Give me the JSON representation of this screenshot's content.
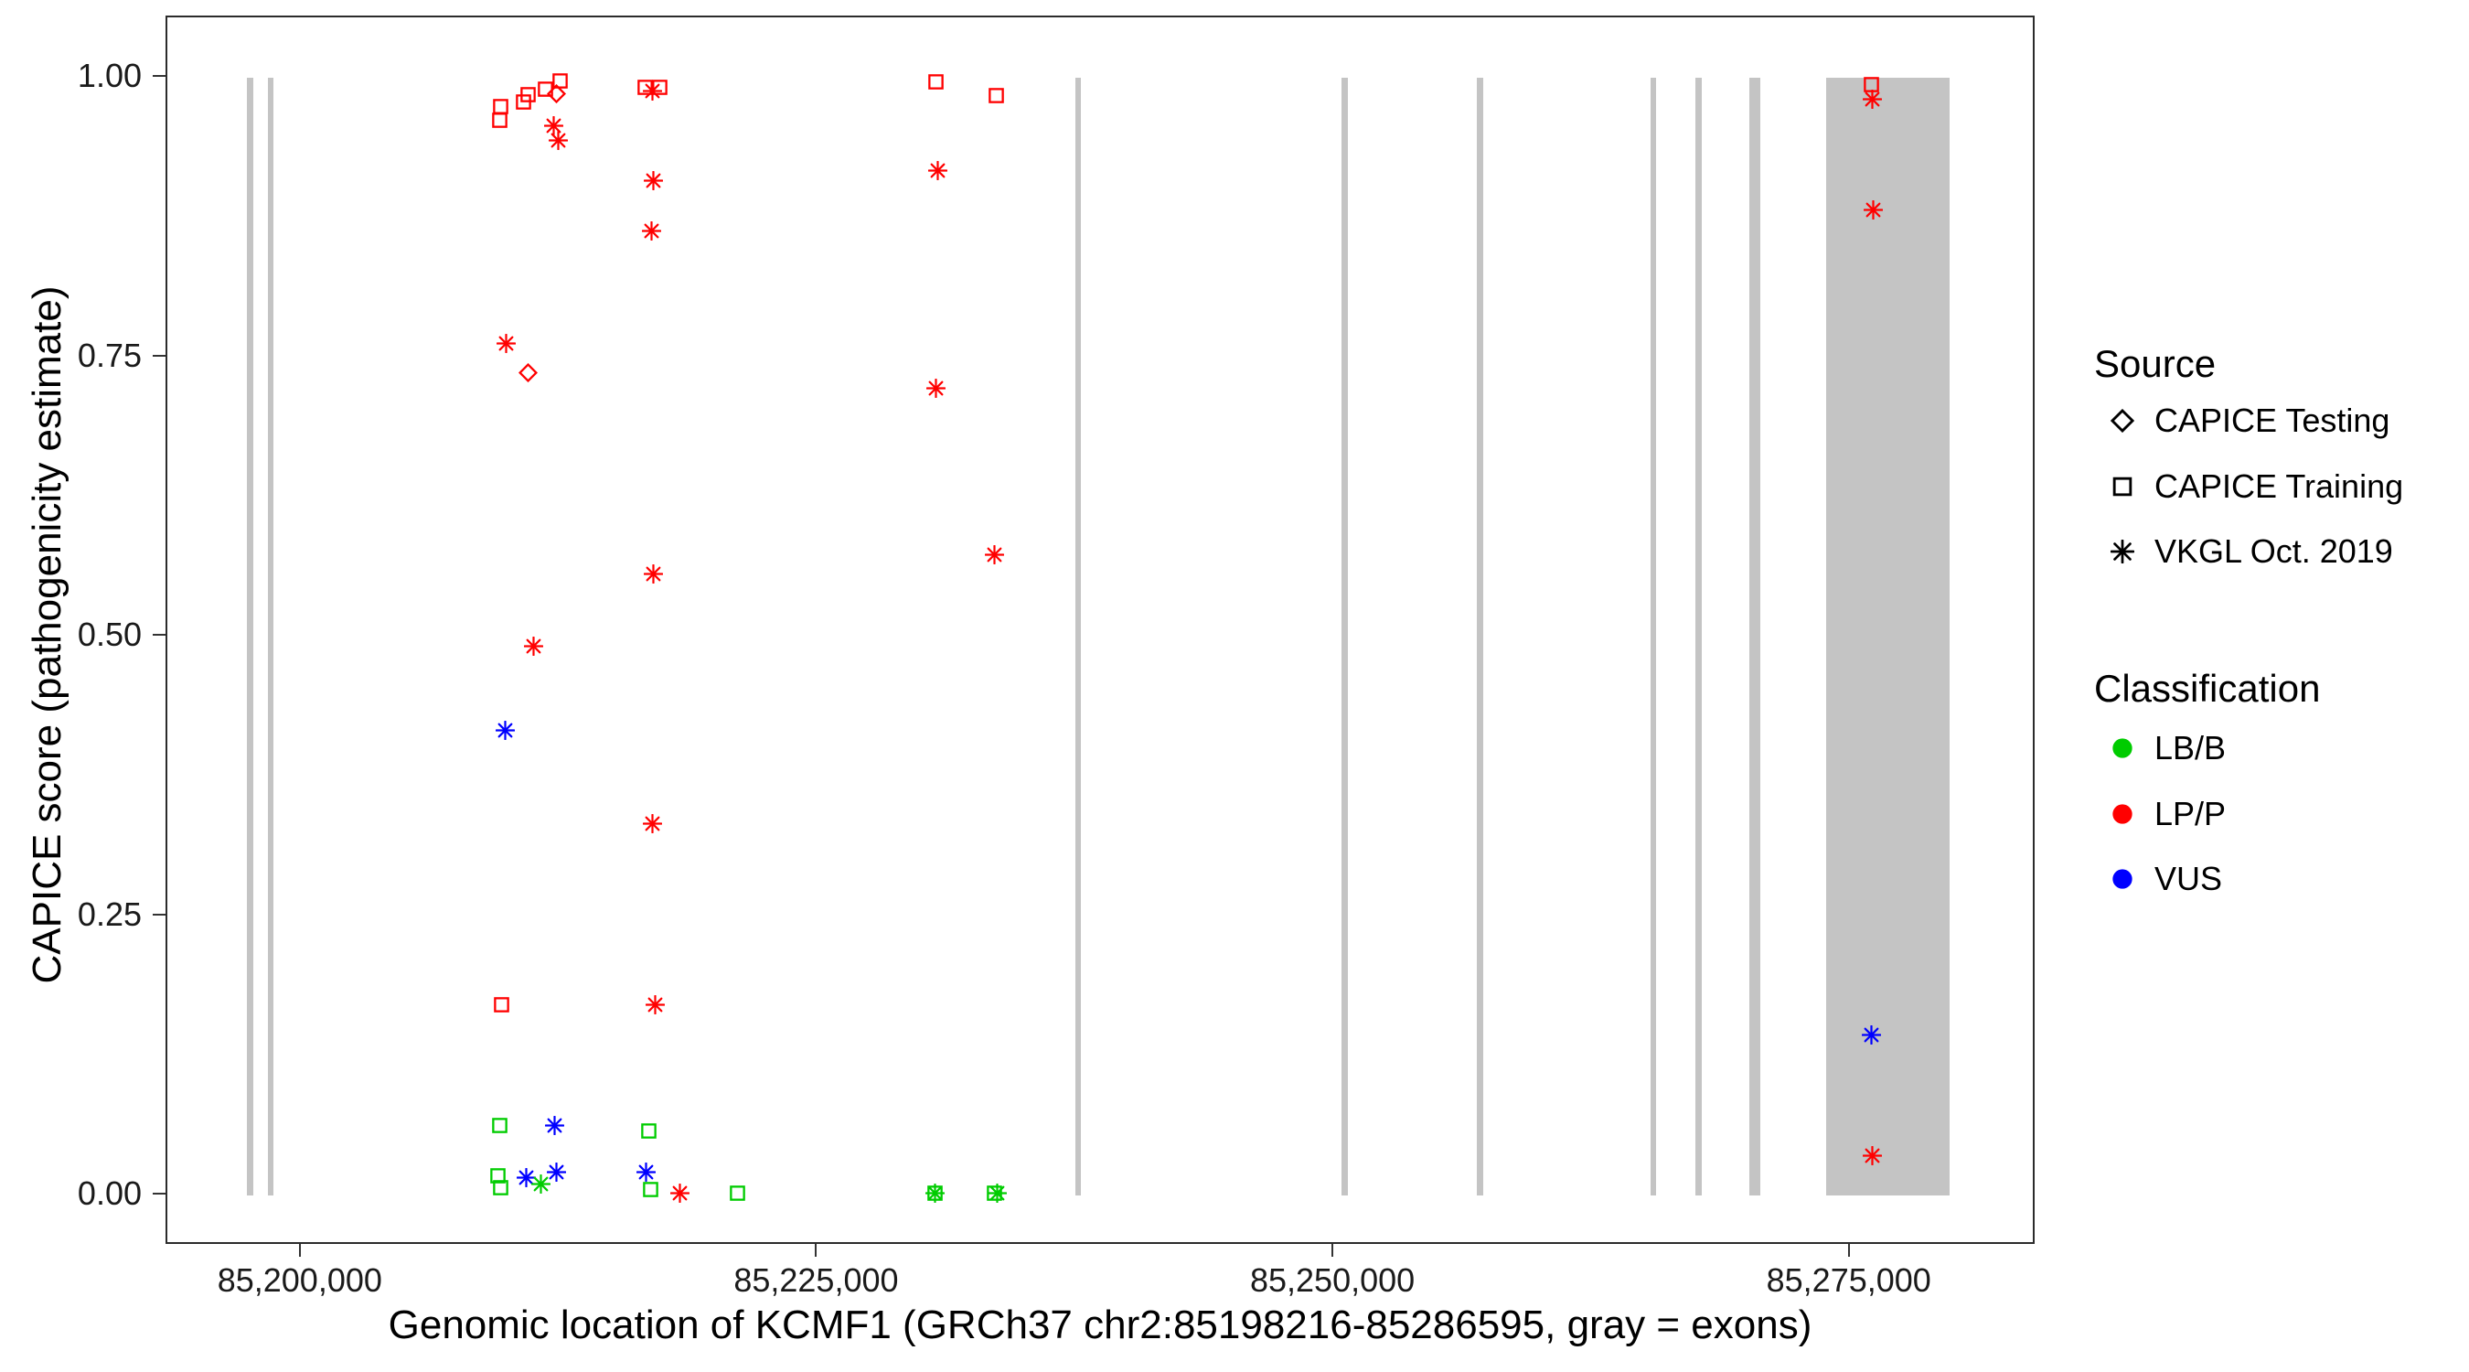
{
  "axes": {
    "x": {
      "title": "Genomic location of KCMF1 (GRCh37 chr2:85198216-85286595, gray = exons)",
      "tick_labels": [
        "85,200,000",
        "85,225,000",
        "85,250,000",
        "85,275,000"
      ]
    },
    "y": {
      "title": "CAPICE score (pathogenicity estimate)",
      "tick_labels": [
        "0.00",
        "0.25",
        "0.50",
        "0.75",
        "1.00"
      ]
    }
  },
  "legend": {
    "source": {
      "title": "Source",
      "items": [
        {
          "label": "CAPICE Testing",
          "symbol": "diamond"
        },
        {
          "label": "CAPICE Training",
          "symbol": "square"
        },
        {
          "label": "VKGL Oct. 2019",
          "symbol": "asterisk"
        }
      ]
    },
    "classification": {
      "title": "Classification",
      "items": [
        {
          "label": "LB/B",
          "color": "#00cc00"
        },
        {
          "label": "LP/P",
          "color": "#ff0000"
        },
        {
          "label": "VUS",
          "color": "#0000ff"
        }
      ]
    }
  },
  "chart_data": {
    "type": "scatter",
    "title": "",
    "xlabel": "Genomic location of KCMF1 (GRCh37 chr2:85198216-85286595, gray = exons)",
    "ylabel": "CAPICE score (pathogenicity estimate)",
    "xlim": [
      85193500,
      85284000
    ],
    "ylim": [
      0.0,
      1.0
    ],
    "x_tick_values": [
      85200000,
      85225000,
      85250000,
      85275000
    ],
    "y_tick_values": [
      0.0,
      0.25,
      0.5,
      0.75,
      1.0
    ],
    "grid": false,
    "legend_position": "right",
    "exon_color": "#c4c4c4",
    "colors": {
      "LB/B": "#00cc00",
      "LP/P": "#ff0000",
      "VUS": "#0000ff"
    },
    "symbols": {
      "CAPICE Testing": "diamond",
      "CAPICE Training": "square",
      "VKGL Oct. 2019": "asterisk"
    },
    "exons": [
      [
        85197350,
        85197650
      ],
      [
        85198350,
        85198650
      ],
      [
        85237450,
        85237750
      ],
      [
        85250350,
        85250650
      ],
      [
        85256900,
        85257200
      ],
      [
        85265300,
        85265600
      ],
      [
        85267500,
        85267800
      ],
      [
        85270100,
        85270650
      ],
      [
        85273800,
        85279800
      ]
    ],
    "points": [
      {
        "x": 85209600,
        "y": 0.962,
        "source": "CAPICE Training",
        "class": "LP/P"
      },
      {
        "x": 85209620,
        "y": 0.974,
        "source": "CAPICE Training",
        "class": "LP/P"
      },
      {
        "x": 85210750,
        "y": 0.978,
        "source": "CAPICE Training",
        "class": "LP/P"
      },
      {
        "x": 85210950,
        "y": 0.985,
        "source": "CAPICE Training",
        "class": "LP/P"
      },
      {
        "x": 85211800,
        "y": 0.99,
        "source": "CAPICE Training",
        "class": "LP/P"
      },
      {
        "x": 85212500,
        "y": 0.997,
        "source": "CAPICE Training",
        "class": "LP/P"
      },
      {
        "x": 85212350,
        "y": 0.986,
        "source": "CAPICE Testing",
        "class": "LP/P"
      },
      {
        "x": 85212200,
        "y": 0.957,
        "source": "VKGL Oct. 2019",
        "class": "LP/P"
      },
      {
        "x": 85212450,
        "y": 0.944,
        "source": "VKGL Oct. 2019",
        "class": "LP/P"
      },
      {
        "x": 85216650,
        "y": 0.991,
        "source": "CAPICE Training",
        "class": "LP/P"
      },
      {
        "x": 85217350,
        "y": 0.991,
        "source": "CAPICE Training",
        "class": "LP/P"
      },
      {
        "x": 85217000,
        "y": 0.988,
        "source": "VKGL Oct. 2019",
        "class": "LP/P"
      },
      {
        "x": 85217050,
        "y": 0.908,
        "source": "VKGL Oct. 2019",
        "class": "LP/P"
      },
      {
        "x": 85216950,
        "y": 0.863,
        "source": "VKGL Oct. 2019",
        "class": "LP/P"
      },
      {
        "x": 85230700,
        "y": 0.996,
        "source": "CAPICE Training",
        "class": "LP/P"
      },
      {
        "x": 85233650,
        "y": 0.984,
        "source": "CAPICE Training",
        "class": "LP/P"
      },
      {
        "x": 85230800,
        "y": 0.917,
        "source": "VKGL Oct. 2019",
        "class": "LP/P"
      },
      {
        "x": 85230700,
        "y": 0.722,
        "source": "VKGL Oct. 2019",
        "class": "LP/P"
      },
      {
        "x": 85233550,
        "y": 0.573,
        "source": "VKGL Oct. 2019",
        "class": "LP/P"
      },
      {
        "x": 85209900,
        "y": 0.762,
        "source": "VKGL Oct. 2019",
        "class": "LP/P"
      },
      {
        "x": 85210950,
        "y": 0.736,
        "source": "CAPICE Testing",
        "class": "LP/P"
      },
      {
        "x": 85211250,
        "y": 0.491,
        "source": "VKGL Oct. 2019",
        "class": "LP/P"
      },
      {
        "x": 85209850,
        "y": 0.416,
        "source": "VKGL Oct. 2019",
        "class": "VUS"
      },
      {
        "x": 85217050,
        "y": 0.556,
        "source": "VKGL Oct. 2019",
        "class": "LP/P"
      },
      {
        "x": 85217000,
        "y": 0.333,
        "source": "VKGL Oct. 2019",
        "class": "LP/P"
      },
      {
        "x": 85209700,
        "y": 0.171,
        "source": "CAPICE Training",
        "class": "LP/P"
      },
      {
        "x": 85217100,
        "y": 0.171,
        "source": "VKGL Oct. 2019",
        "class": "LP/P"
      },
      {
        "x": 85209600,
        "y": 0.063,
        "source": "CAPICE Training",
        "class": "LB/B"
      },
      {
        "x": 85212250,
        "y": 0.063,
        "source": "VKGL Oct. 2019",
        "class": "VUS"
      },
      {
        "x": 85209500,
        "y": 0.018,
        "source": "CAPICE Training",
        "class": "LB/B"
      },
      {
        "x": 85209650,
        "y": 0.007,
        "source": "CAPICE Training",
        "class": "LB/B"
      },
      {
        "x": 85210900,
        "y": 0.016,
        "source": "VKGL Oct. 2019",
        "class": "VUS"
      },
      {
        "x": 85212350,
        "y": 0.021,
        "source": "VKGL Oct. 2019",
        "class": "VUS"
      },
      {
        "x": 85211600,
        "y": 0.01,
        "source": "VKGL Oct. 2019",
        "class": "LB/B"
      },
      {
        "x": 85216800,
        "y": 0.058,
        "source": "CAPICE Training",
        "class": "LB/B"
      },
      {
        "x": 85216700,
        "y": 0.021,
        "source": "VKGL Oct. 2019",
        "class": "VUS"
      },
      {
        "x": 85216900,
        "y": 0.005,
        "source": "CAPICE Training",
        "class": "LB/B"
      },
      {
        "x": 85218300,
        "y": 0.002,
        "source": "VKGL Oct. 2019",
        "class": "LP/P"
      },
      {
        "x": 85221100,
        "y": 0.002,
        "source": "CAPICE Training",
        "class": "LB/B"
      },
      {
        "x": 85230650,
        "y": 0.002,
        "source": "CAPICE Training",
        "class": "LB/B"
      },
      {
        "x": 85230650,
        "y": 0.002,
        "source": "VKGL Oct. 2019",
        "class": "LB/B"
      },
      {
        "x": 85233550,
        "y": 0.002,
        "source": "CAPICE Training",
        "class": "LB/B"
      },
      {
        "x": 85233700,
        "y": 0.002,
        "source": "VKGL Oct. 2019",
        "class": "LB/B"
      },
      {
        "x": 85276000,
        "y": 0.994,
        "source": "CAPICE Training",
        "class": "LP/P"
      },
      {
        "x": 85276050,
        "y": 0.981,
        "source": "VKGL Oct. 2019",
        "class": "LP/P"
      },
      {
        "x": 85276100,
        "y": 0.882,
        "source": "VKGL Oct. 2019",
        "class": "LP/P"
      },
      {
        "x": 85276000,
        "y": 0.144,
        "source": "VKGL Oct. 2019",
        "class": "VUS"
      },
      {
        "x": 85276050,
        "y": 0.036,
        "source": "VKGL Oct. 2019",
        "class": "LP/P"
      }
    ]
  }
}
